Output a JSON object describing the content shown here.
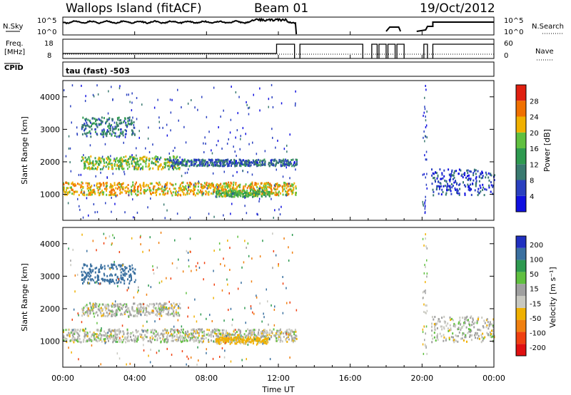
{
  "header": {
    "title": "Wallops Island (fitACF)",
    "beam": "Beam 01",
    "date": "19/Oct/2012"
  },
  "strips": {
    "nsky_label": "N.Sky",
    "nsearch_label": "N.Search",
    "noise_ticks": [
      "10^5",
      "10^0"
    ],
    "freq_label": "Freq.",
    "freq_unit": "[MHz]",
    "freq_ticks": [
      "18",
      "8"
    ],
    "nave_label": "Nave",
    "nave_ticks": [
      "60",
      "0"
    ],
    "cpid_label": "CPID",
    "cpid_value": "tau (fast) -503"
  },
  "colors": {
    "power": [
      "#1010e0",
      "#2a40c0",
      "#3a7a70",
      "#2e9a50",
      "#60c040",
      "#f0b000",
      "#f07000",
      "#e02010"
    ],
    "velocity": [
      "#e01010",
      "#f04010",
      "#f08010",
      "#f0b000",
      "#c8c8c0",
      "#a0a0a0",
      "#60c040",
      "#2e9a50",
      "#3a70a0",
      "#2030c0"
    ]
  },
  "chart_data": [
    {
      "type": "heatmap",
      "title": "",
      "xlabel": "Time UT",
      "ylabel": "Slant Range [km]",
      "x_ticks": [
        "00:00",
        "04:00",
        "08:00",
        "12:00",
        "16:00",
        "20:00",
        "00:00"
      ],
      "xlim_hours": [
        0,
        24
      ],
      "ylim": [
        200,
        4500
      ],
      "y_ticks": [
        1000,
        2000,
        3000,
        4000
      ],
      "colorbar": {
        "label": "Power [dB]",
        "ticks": [
          4,
          8,
          12,
          16,
          20,
          24,
          28
        ],
        "range": [
          0,
          32
        ]
      },
      "echo_bands": [
        {
          "t": [
            0.0,
            13.0
          ],
          "range_km": [
            1000,
            1400
          ],
          "power_db": 22
        },
        {
          "t": [
            1.0,
            6.5
          ],
          "range_km": [
            1800,
            2200
          ],
          "power_db": 18
        },
        {
          "t": [
            6.0,
            13.0
          ],
          "range_km": [
            1900,
            2100
          ],
          "power_db": 8
        },
        {
          "t": [
            8.5,
            11.5
          ],
          "range_km": [
            950,
            1150
          ],
          "power_db": 16
        },
        {
          "t": [
            1.0,
            4.0
          ],
          "range_km": [
            2800,
            3400
          ],
          "power_db": 10
        },
        {
          "t": [
            20.5,
            24.0
          ],
          "range_km": [
            1000,
            1800
          ],
          "power_db": 6
        }
      ]
    },
    {
      "type": "heatmap",
      "title": "",
      "xlabel": "Time UT",
      "ylabel": "Slant Range [km]",
      "x_ticks": [
        "00:00",
        "04:00",
        "08:00",
        "12:00",
        "16:00",
        "20:00",
        "00:00"
      ],
      "xlim_hours": [
        0,
        24
      ],
      "ylim": [
        200,
        4500
      ],
      "y_ticks": [
        1000,
        2000,
        3000,
        4000
      ],
      "colorbar": {
        "label": "Velocity [m s⁻¹]",
        "ticks": [
          200,
          100,
          50,
          15,
          -15,
          -50,
          -100,
          -200
        ],
        "range": [
          -250,
          250
        ]
      },
      "echo_bands": [
        {
          "t": [
            0.0,
            13.0
          ],
          "range_km": [
            1000,
            1400
          ],
          "velocity": 0
        },
        {
          "t": [
            1.0,
            6.5
          ],
          "range_km": [
            1800,
            2200
          ],
          "velocity": 0
        },
        {
          "t": [
            8.5,
            11.5
          ],
          "range_km": [
            950,
            1150
          ],
          "velocity": -30
        },
        {
          "t": [
            1.0,
            4.0
          ],
          "range_km": [
            2800,
            3400
          ],
          "velocity": 150
        },
        {
          "t": [
            20.5,
            24.0
          ],
          "range_km": [
            1000,
            1800
          ],
          "velocity": 0
        }
      ]
    }
  ]
}
